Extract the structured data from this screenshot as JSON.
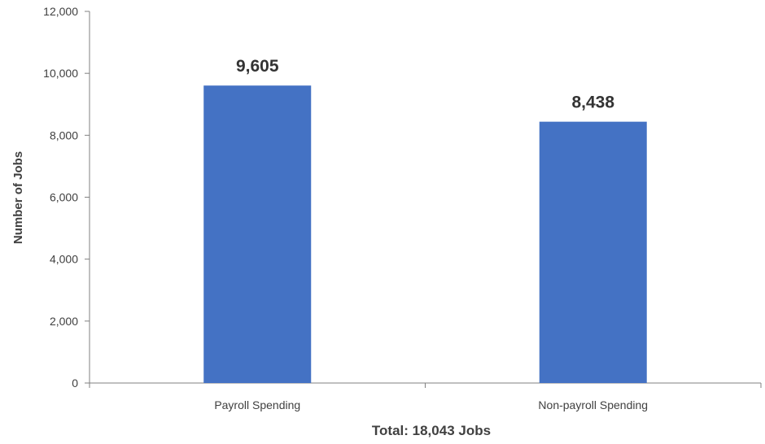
{
  "chart_data": {
    "type": "bar",
    "categories": [
      "Payroll Spending",
      "Non-payroll Spending"
    ],
    "values": [
      9605,
      8438
    ],
    "data_labels": [
      "9,605",
      "8,438"
    ],
    "xlabel": "Total: 18,043  Jobs",
    "ylabel": "Number of Jobs",
    "ylim": [
      0,
      12000
    ],
    "yticks": [
      0,
      2000,
      4000,
      6000,
      8000,
      10000,
      12000
    ],
    "ytick_labels": [
      "0",
      "2,000",
      "4,000",
      "6,000",
      "8,000",
      "10,000",
      "12,000"
    ],
    "grid": false,
    "legend": "none",
    "bar_color": "#4472C4"
  }
}
